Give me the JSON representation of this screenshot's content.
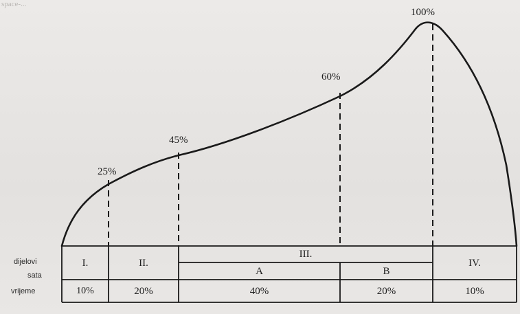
{
  "corner_text": "space-...",
  "peaks": {
    "p25": "25%",
    "p45": "45%",
    "p60": "60%",
    "p100": "100%"
  },
  "row_labels": {
    "parts": "dijelovi",
    "hour": "sata",
    "time": "vrijeme"
  },
  "phases": {
    "I": "I.",
    "II": "II.",
    "III": "III.",
    "IIIA": "A",
    "IIIB": "B",
    "IV": "IV."
  },
  "times": {
    "I": "10%",
    "II": "20%",
    "A": "40%",
    "B": "20%",
    "IV": "10%"
  },
  "colors": {
    "ink": "#1a1a1a",
    "paper": "#e6e4e2"
  }
}
